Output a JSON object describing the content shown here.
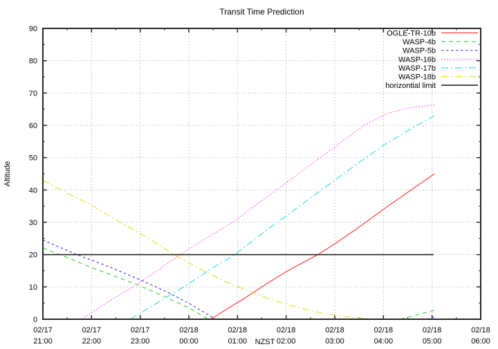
{
  "page": {
    "background": "#ffffff"
  },
  "chart_data": {
    "type": "line",
    "title": "Transit Time Prediction",
    "xlabel": "NZST",
    "ylabel": "Altitude",
    "ylim": [
      0,
      90
    ],
    "y_ticks": [
      "0",
      "10",
      "20",
      "30",
      "40",
      "50",
      "60",
      "70",
      "80",
      "90"
    ],
    "x_hours_span": 9,
    "x_ticks": [
      {
        "date": "02/17",
        "time": "21:00"
      },
      {
        "date": "02/17",
        "time": "22:00"
      },
      {
        "date": "02/17",
        "time": "23:00"
      },
      {
        "date": "02/18",
        "time": "00:00"
      },
      {
        "date": "02/18",
        "time": "01:00"
      },
      {
        "date": "02/18",
        "time": "02:00"
      },
      {
        "date": "02/18",
        "time": "03:00"
      },
      {
        "date": "02/18",
        "time": "04:00"
      },
      {
        "date": "02/18",
        "time": "05:00"
      },
      {
        "date": "02/18",
        "time": "06:00"
      }
    ],
    "grid": true,
    "legend_position": "top-right-inside",
    "colors": {
      "grid": "#b8b8b8",
      "border": "#262626",
      "text": "#000000"
    },
    "series": [
      {
        "name": "OGLE-TR-10b",
        "color": "#ff3b3b",
        "dash": "solid",
        "segments": [
          [
            [
              3.45,
              0
            ],
            [
              3.8,
              3.3
            ],
            [
              4.2,
              7
            ],
            [
              4.6,
              11
            ],
            [
              5,
              14.7
            ],
            [
              5.65,
              20
            ],
            [
              6,
              23.3
            ],
            [
              6.5,
              28.5
            ],
            [
              7,
              34
            ],
            [
              7.5,
              39.3
            ],
            [
              8.05,
              45
            ]
          ]
        ]
      },
      {
        "name": "WASP-4b",
        "color": "#46d846",
        "dash": "dashed",
        "segments": [
          [
            [
              0,
              22
            ],
            [
              0.4,
              19.7
            ],
            [
              1,
              16
            ],
            [
              1.5,
              13.2
            ],
            [
              2,
              10.3
            ],
            [
              2.5,
              7
            ],
            [
              3,
              3.5
            ],
            [
              3.4,
              0
            ]
          ],
          [
            [
              7.35,
              0
            ],
            [
              7.7,
              1.4
            ],
            [
              8.05,
              2.8
            ]
          ]
        ]
      },
      {
        "name": "WASP-5b",
        "color": "#4747dd",
        "dash": "short-dashed",
        "segments": [
          [
            [
              0,
              24.5
            ],
            [
              0.7,
              20
            ],
            [
              1.4,
              16
            ],
            [
              2,
              12.2
            ],
            [
              2.5,
              8.8
            ],
            [
              3,
              5
            ],
            [
              3.55,
              0
            ]
          ],
          [
            [
              7.9,
              0
            ],
            [
              8.05,
              0.7
            ]
          ]
        ]
      },
      {
        "name": "WASP-16b",
        "color": "#f94df9",
        "dash": "dotted",
        "segments": [
          [
            [
              0.8,
              0
            ],
            [
              1.3,
              5
            ],
            [
              1.85,
              10
            ],
            [
              2.35,
              15
            ],
            [
              2.82,
              20
            ],
            [
              3.35,
              25
            ],
            [
              3.9,
              30
            ],
            [
              4.35,
              35
            ],
            [
              4.8,
              40
            ],
            [
              5.25,
              45
            ],
            [
              5.7,
              50
            ],
            [
              6.15,
              55
            ],
            [
              6.6,
              60
            ],
            [
              7.1,
              63.8
            ],
            [
              7.6,
              65.6
            ],
            [
              8.05,
              66.3
            ]
          ]
        ]
      },
      {
        "name": "WASP-17b",
        "color": "#3fdede",
        "dash": "dash-dot",
        "segments": [
          [
            [
              1.8,
              0
            ],
            [
              2.4,
              5.5
            ],
            [
              3,
              11
            ],
            [
              3.5,
              16
            ],
            [
              3.95,
              20
            ],
            [
              4.5,
              26.5
            ],
            [
              5,
              32
            ],
            [
              5.5,
              37.5
            ],
            [
              6,
              43
            ],
            [
              6.5,
              48.5
            ],
            [
              7,
              53.8
            ],
            [
              7.55,
              58.8
            ],
            [
              8.05,
              63
            ]
          ]
        ]
      },
      {
        "name": "WASP-18b",
        "color": "#e0e032",
        "dash": "dash-dot",
        "segments": [
          [
            [
              0,
              43
            ],
            [
              0.5,
              39
            ],
            [
              1,
              35.3
            ],
            [
              1.6,
              30
            ],
            [
              2.2,
              24.8
            ],
            [
              2.7,
              20
            ],
            [
              3.2,
              15.8
            ],
            [
              3.7,
              12
            ],
            [
              4.2,
              8.9
            ],
            [
              4.7,
              6
            ],
            [
              5.2,
              3.8
            ],
            [
              5.7,
              2
            ],
            [
              6.2,
              0.8
            ],
            [
              6.7,
              0.1
            ]
          ]
        ]
      },
      {
        "name": "horizontial limit",
        "color": "#222222",
        "dash": "solid",
        "segments": [
          [
            [
              0,
              20
            ],
            [
              8.03,
              20
            ]
          ]
        ]
      }
    ]
  }
}
